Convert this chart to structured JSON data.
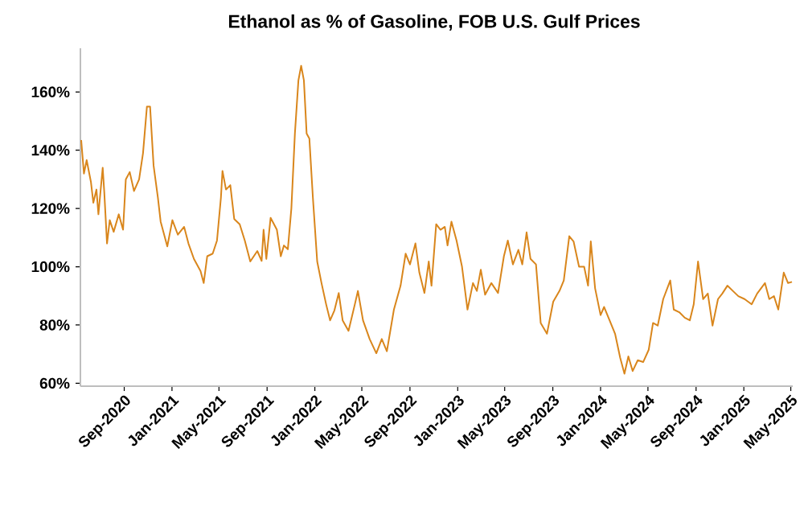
{
  "chart_data": {
    "type": "line",
    "title": "Ethanol as % of Gasoline, FOB U.S. Gulf Prices",
    "color": "#d9861c",
    "x": [
      "2020-05-14",
      "2020-05-21",
      "2020-05-28",
      "2020-06-08",
      "2020-06-14",
      "2020-06-22",
      "2020-06-27",
      "2020-07-08",
      "2020-07-12",
      "2020-07-19",
      "2020-07-26",
      "2020-08-05",
      "2020-08-18",
      "2020-08-29",
      "2020-09-05",
      "2020-09-15",
      "2020-09-26",
      "2020-10-09",
      "2020-10-19",
      "2020-10-29",
      "2020-11-06",
      "2020-11-15",
      "2020-11-26",
      "2020-12-03",
      "2020-12-20",
      "2021-01-02",
      "2021-01-16",
      "2021-02-01",
      "2021-02-12",
      "2021-02-26",
      "2021-03-15",
      "2021-03-23",
      "2021-04-01",
      "2021-04-15",
      "2021-04-26",
      "2021-05-06",
      "2021-05-10",
      "2021-05-19",
      "2021-05-30",
      "2021-06-09",
      "2021-06-23",
      "2021-07-06",
      "2021-07-20",
      "2021-08-07",
      "2021-08-18",
      "2021-08-23",
      "2021-08-30",
      "2021-09-10",
      "2021-09-26",
      "2021-10-06",
      "2021-10-14",
      "2021-10-24",
      "2021-11-02",
      "2021-11-11",
      "2021-11-20",
      "2021-11-27",
      "2021-12-04",
      "2021-12-11",
      "2021-12-18",
      "2021-12-27",
      "2022-01-07",
      "2022-01-18",
      "2022-01-30",
      "2022-02-09",
      "2022-02-20",
      "2022-03-03",
      "2022-03-13",
      "2022-03-28",
      "2022-04-13",
      "2022-04-21",
      "2022-05-04",
      "2022-05-21",
      "2022-06-07",
      "2022-06-21",
      "2022-07-04",
      "2022-07-22",
      "2022-08-08",
      "2022-08-21",
      "2022-09-01",
      "2022-09-15",
      "2022-09-25",
      "2022-10-08",
      "2022-10-19",
      "2022-10-26",
      "2022-11-07",
      "2022-11-18",
      "2022-11-29",
      "2022-12-06",
      "2022-12-16",
      "2022-12-29",
      "2023-01-12",
      "2023-01-26",
      "2023-02-09",
      "2023-02-19",
      "2023-03-01",
      "2023-03-12",
      "2023-03-28",
      "2023-04-14",
      "2023-04-29",
      "2023-05-09",
      "2023-05-22",
      "2023-06-05",
      "2023-06-15",
      "2023-06-26",
      "2023-07-06",
      "2023-07-20",
      "2023-08-01",
      "2023-08-17",
      "2023-09-02",
      "2023-09-18",
      "2023-09-29",
      "2023-10-13",
      "2023-10-24",
      "2023-11-07",
      "2023-11-20",
      "2023-11-30",
      "2023-12-07",
      "2023-12-18",
      "2024-01-01",
      "2024-01-10",
      "2024-01-24",
      "2024-02-07",
      "2024-02-20",
      "2024-03-02",
      "2024-03-12",
      "2024-03-23",
      "2024-04-05",
      "2024-04-19",
      "2024-05-03",
      "2024-05-14",
      "2024-05-26",
      "2024-06-09",
      "2024-06-27",
      "2024-07-06",
      "2024-07-20",
      "2024-08-03",
      "2024-08-16",
      "2024-08-26",
      "2024-09-06",
      "2024-09-19",
      "2024-10-01",
      "2024-10-13",
      "2024-10-27",
      "2024-11-07",
      "2024-11-20",
      "2024-12-04",
      "2024-12-18",
      "2025-01-03",
      "2025-01-21",
      "2025-02-04",
      "2025-02-24",
      "2025-03-07",
      "2025-03-19",
      "2025-03-30",
      "2025-04-13",
      "2025-04-24",
      "2025-05-04"
    ],
    "values": [
      143.5,
      132,
      136.6,
      129,
      122,
      126.5,
      118,
      134,
      125.6,
      108,
      116,
      112,
      118,
      112.7,
      130,
      132.5,
      126,
      130,
      139,
      155,
      155,
      134.7,
      123.7,
      115.5,
      107,
      116,
      111,
      113.7,
      108,
      102.7,
      98.5,
      94.4,
      103.6,
      104.5,
      109,
      123.7,
      132.9,
      126.5,
      128,
      116.4,
      114.6,
      109,
      101.8,
      105.4,
      102,
      112.7,
      102.7,
      116.8,
      112.7,
      103.6,
      107.3,
      106,
      120,
      145.7,
      164,
      169,
      164,
      145.7,
      144,
      123.7,
      101.8,
      94.4,
      87,
      81.6,
      85,
      91,
      81.6,
      78,
      87,
      91.7,
      81.6,
      75.2,
      70.3,
      75.2,
      71,
      85.3,
      93.5,
      104.5,
      100.8,
      108,
      98,
      91,
      101.8,
      93.5,
      114.6,
      112.7,
      113.7,
      107.3,
      115.5,
      109,
      100,
      85.3,
      94.4,
      91.7,
      99,
      90.4,
      94.4,
      91,
      103.6,
      109,
      100.8,
      105.8,
      100.8,
      111.8,
      102.7,
      100.8,
      80.7,
      77,
      88,
      91.7,
      95.3,
      110.5,
      108.7,
      100,
      100,
      93.5,
      108.7,
      92.6,
      83.4,
      86.2,
      81.6,
      77,
      68.8,
      63.3,
      69.2,
      64.2,
      67.9,
      67.3,
      71.5,
      80.7,
      79.8,
      88.9,
      95.3,
      85.3,
      84.4,
      82.5,
      81.6,
      87.1,
      101.8,
      88.9,
      90.8,
      79.8,
      88.9,
      90.8,
      93.5,
      91.7,
      89.9,
      88.9,
      87.1,
      90.8,
      94.4,
      88.9,
      89.9,
      85.3,
      98,
      94.4,
      94.8
    ],
    "xlim": [
      "2020-05-12",
      "2025-05-06"
    ],
    "ylim": [
      59,
      175
    ],
    "xticks": [
      {
        "value": "2020-09-01",
        "label": "Sep-2020"
      },
      {
        "value": "2021-01-01",
        "label": "Jan-2021"
      },
      {
        "value": "2021-05-01",
        "label": "May-2021"
      },
      {
        "value": "2021-09-01",
        "label": "Sep-2021"
      },
      {
        "value": "2022-01-01",
        "label": "Jan-2022"
      },
      {
        "value": "2022-05-01",
        "label": "May-2022"
      },
      {
        "value": "2022-09-01",
        "label": "Sep-2022"
      },
      {
        "value": "2023-01-01",
        "label": "Jan-2023"
      },
      {
        "value": "2023-05-01",
        "label": "May-2023"
      },
      {
        "value": "2023-09-01",
        "label": "Sep-2023"
      },
      {
        "value": "2024-01-01",
        "label": "Jan-2024"
      },
      {
        "value": "2024-05-01",
        "label": "May-2024"
      },
      {
        "value": "2024-09-01",
        "label": "Sep-2024"
      },
      {
        "value": "2025-01-01",
        "label": "Jan-2025"
      },
      {
        "value": "2025-05-01",
        "label": "May-2025"
      }
    ],
    "yticks": [
      {
        "value": 60,
        "label": "60%"
      },
      {
        "value": 80,
        "label": "80%"
      },
      {
        "value": 100,
        "label": "100%"
      },
      {
        "value": 120,
        "label": "120%"
      },
      {
        "value": 140,
        "label": "140%"
      },
      {
        "value": 160,
        "label": "160%"
      }
    ]
  }
}
